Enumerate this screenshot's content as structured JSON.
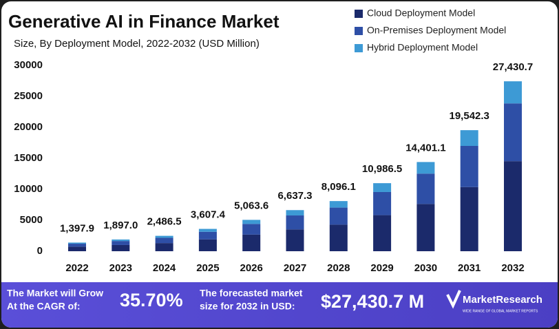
{
  "chart_data": {
    "type": "stacked_bar",
    "title": "Generative AI in Finance Market",
    "subtitle": "Size, By Deployment Model, 2022-2032 (USD Million)",
    "categories": [
      "2022",
      "2023",
      "2024",
      "2025",
      "2026",
      "2027",
      "2028",
      "2029",
      "2030",
      "2031",
      "2032"
    ],
    "series": [
      {
        "name": "Cloud Deployment Model",
        "color": "#1b2a6b",
        "values": [
          741,
          1005,
          1318,
          1912,
          2684,
          3518,
          4291,
          5823,
          7633,
          10357,
          14538
        ]
      },
      {
        "name": "On-Premises Deployment Model",
        "color": "#2e4fa6",
        "values": [
          475,
          645,
          845,
          1227,
          1722,
          2257,
          2753,
          3735,
          4896,
          6644,
          9326
        ]
      },
      {
        "name": "Hybrid Deployment Model",
        "color": "#3d9ad5",
        "values": [
          181.9,
          247,
          323.5,
          468.4,
          657.6,
          862.3,
          1052.1,
          1428.5,
          1872.1,
          2541.3,
          3566.7
        ]
      }
    ],
    "totals": [
      1397.9,
      1897.0,
      2486.5,
      3607.4,
      5063.6,
      6637.3,
      8096.1,
      10986.5,
      14401.1,
      19542.3,
      27430.7
    ],
    "total_labels": [
      "1,397.9",
      "1,897.0",
      "2,486.5",
      "3,607.4",
      "5,063.6",
      "6,637.3",
      "8,096.1",
      "10,986.5",
      "14,401.1",
      "19,542.3",
      "27,430.7"
    ],
    "ylim": [
      0,
      30000
    ],
    "yticks": [
      0,
      5000,
      10000,
      15000,
      20000,
      25000,
      30000
    ],
    "grid": false,
    "legend": "top-right"
  },
  "banner": {
    "cagr_text_1": "The Market will Grow",
    "cagr_text_2": "At the CAGR of:",
    "cagr": "35.70%",
    "forecast_text_1": "The forecasted market",
    "forecast_text_2": "size for 2032 in USD:",
    "forecast": "$27,430.7 M",
    "brand": "MarketResearch",
    "tagline": "WIDE RANGE OF GLOBAL MARKET REPORTS"
  }
}
